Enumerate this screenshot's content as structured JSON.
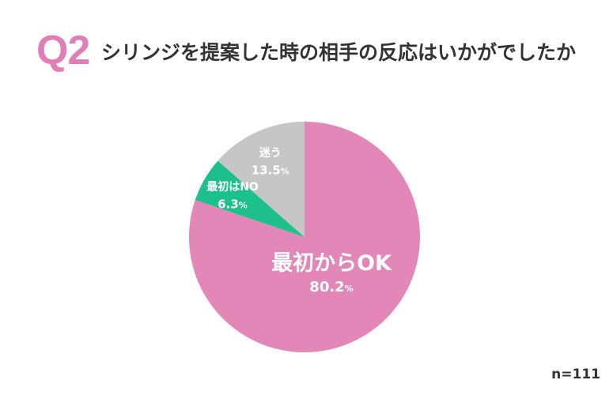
{
  "header": {
    "q_number": "Q2",
    "title": "シリンジを提案した時の相手の反応はいかがでしたか"
  },
  "footer": {
    "sample_size": "n=111"
  },
  "colors": {
    "accent": "#e07fb6",
    "ok": "#e287b8",
    "no": "#1dbf8a",
    "unsure": "#c6c6c6"
  },
  "chart_data": {
    "type": "pie",
    "title": "",
    "unit": "%",
    "slices": [
      {
        "label": "最初からOK",
        "value": 80.2,
        "value_label": "80.2",
        "color": "#e287b8"
      },
      {
        "label": "最初はNO",
        "value": 6.3,
        "value_label": "6.3",
        "color": "#1dbf8a"
      },
      {
        "label": "迷う",
        "value": 13.5,
        "value_label": "13.5",
        "color": "#c6c6c6"
      }
    ],
    "start_angle": "12 o'clock",
    "direction": "clockwise",
    "legend": "none (labels inside slices)"
  }
}
